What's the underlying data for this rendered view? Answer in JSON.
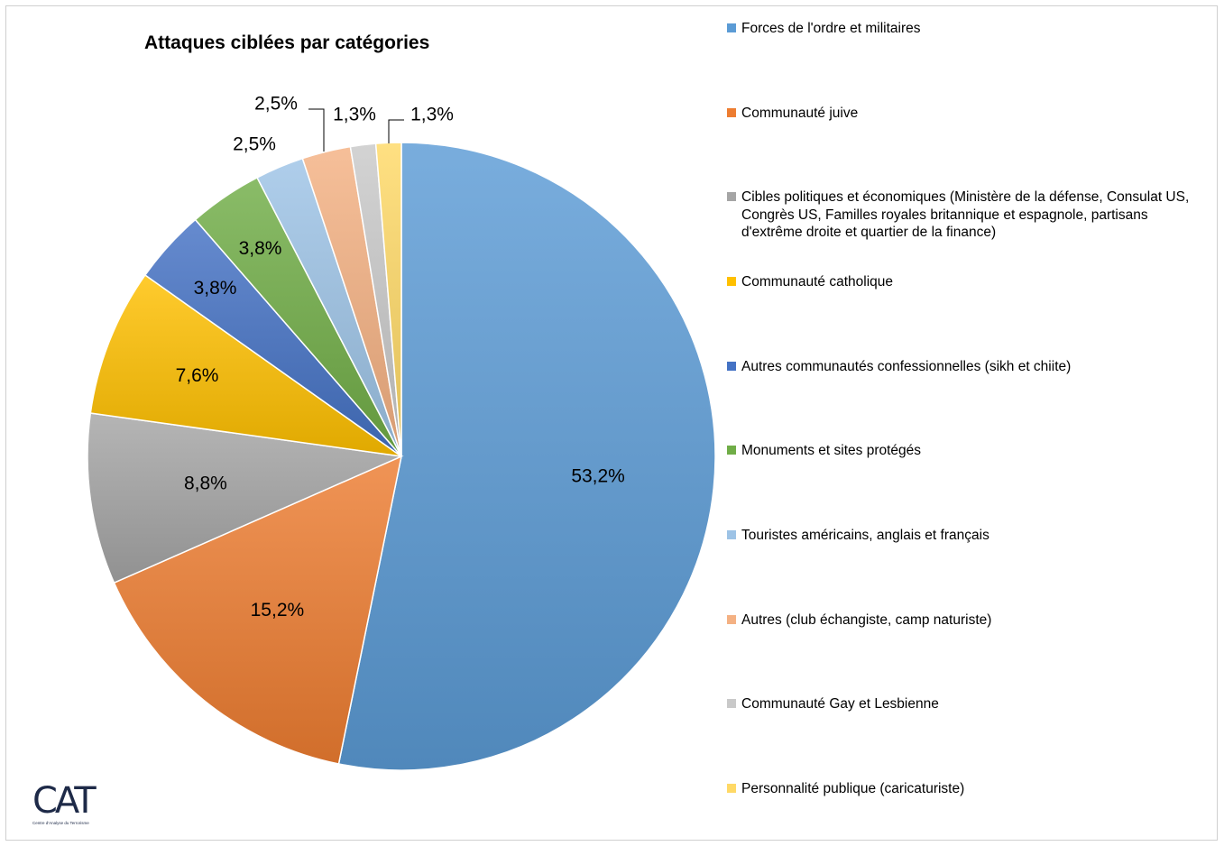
{
  "chart_data": {
    "type": "pie",
    "title": "Attaques ciblées par catégories",
    "slices": [
      {
        "name": "Forces de l'ordre et militaires",
        "value": 53.2,
        "label": "53,2%",
        "color": "#5b9bd5"
      },
      {
        "name": "Communauté juive",
        "value": 15.2,
        "label": "15,2%",
        "color": "#ed7d31"
      },
      {
        "name": "Cibles politiques et économiques (Ministère de la défense, Consulat US, Congrès US, Familles royales britannique et espagnole,  partisans d'extrême droite et quartier de la finance)",
        "value": 8.8,
        "label": "8,8%",
        "color": "#a5a5a5"
      },
      {
        "name": "Communauté catholique",
        "value": 7.6,
        "label": "7,6%",
        "color": "#ffc000"
      },
      {
        "name": "Autres communautés confessionnelles (sikh et chiite)",
        "value": 3.8,
        "label": "3,8%",
        "color": "#4472c4"
      },
      {
        "name": "Monuments et sites protégés",
        "value": 3.8,
        "label": "3,8%",
        "color": "#70ad47"
      },
      {
        "name": "Touristes américains, anglais et français",
        "value": 2.5,
        "label": "2,5%",
        "color": "#9dc3e6"
      },
      {
        "name": "Autres (club échangiste, camp naturiste)",
        "value": 2.5,
        "label": "2,5%",
        "color": "#f4b183"
      },
      {
        "name": "Communauté Gay et Lesbienne",
        "value": 1.3,
        "label": "1,3%",
        "color": "#c9c9c9"
      },
      {
        "name": "Personnalité publique (caricaturiste)",
        "value": 1.3,
        "label": "1,3%",
        "color": "#ffd966"
      }
    ],
    "legend_position": "right"
  },
  "logo": {
    "mark": "CAT",
    "subtitle": "Centre d'Analyse du Terrorisme"
  }
}
